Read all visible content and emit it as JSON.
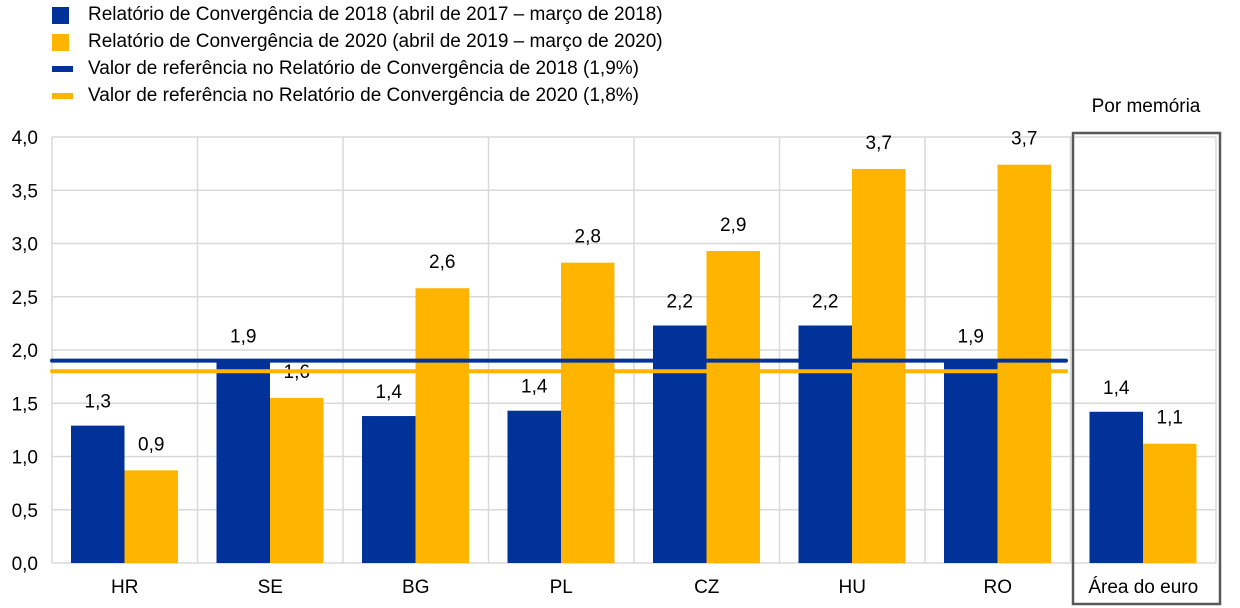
{
  "chart_data": {
    "type": "bar",
    "categories": [
      "HR",
      "SE",
      "BG",
      "PL",
      "CZ",
      "HU",
      "RO",
      "Área do euro"
    ],
    "series": [
      {
        "name": "Relatório de Convergência de 2018 (abril de 2017 – março de 2018)",
        "color": "#003299",
        "values": [
          1.29,
          1.9,
          1.38,
          1.43,
          2.23,
          2.23,
          1.9,
          1.42
        ],
        "labels": [
          "1,3",
          "1,9",
          "1,4",
          "1,4",
          "2,2",
          "2,2",
          "1,9",
          "1,4"
        ]
      },
      {
        "name": "Relatório de Convergência de 2020 (abril de 2019 – março de 2020)",
        "color": "#FFB400",
        "values": [
          0.87,
          1.55,
          2.58,
          2.82,
          2.93,
          3.7,
          3.74,
          1.12
        ],
        "labels": [
          "0,9",
          "1,6",
          "2,6",
          "2,8",
          "2,9",
          "3,7",
          "3,7",
          "1,1"
        ]
      }
    ],
    "reference_lines": [
      {
        "name": "Valor de referência no Relatório de Convergência de 2018 (1,9%)",
        "value": 1.9,
        "color": "#003299"
      },
      {
        "name": "Valor de referência no Relatório de Convergência de 2020 (1,8%)",
        "value": 1.8,
        "color": "#FFB400"
      }
    ],
    "memo_label": "Por memória",
    "ylim": [
      0,
      4
    ],
    "yticks": [
      "0,0",
      "0,5",
      "1,0",
      "1,5",
      "2,0",
      "2,5",
      "3,0",
      "3,5",
      "4,0"
    ],
    "grid": true,
    "legend": "top-left"
  }
}
